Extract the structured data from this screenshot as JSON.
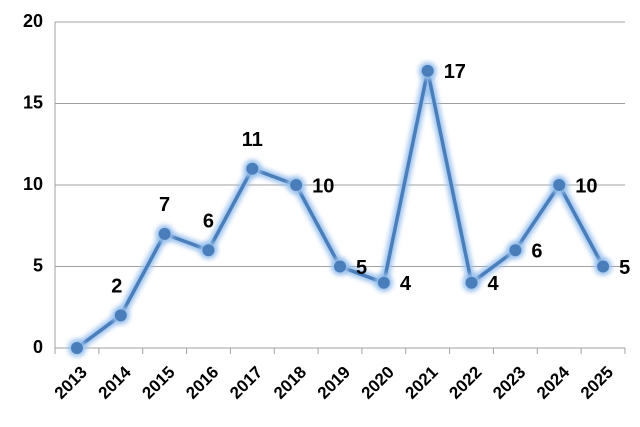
{
  "chart_data": {
    "type": "line",
    "categories": [
      "2013",
      "2014",
      "2015",
      "2016",
      "2017",
      "2018",
      "2019",
      "2020",
      "2021",
      "2022",
      "2023",
      "2024",
      "2025"
    ],
    "series": [
      {
        "color": "#4a7ebb",
        "values": [
          0,
          2,
          7,
          6,
          11,
          10,
          5,
          4,
          17,
          4,
          6,
          10,
          5
        ],
        "value_labels": [
          null,
          "2",
          "7",
          "6",
          "11",
          "10",
          "5",
          "4",
          "17",
          "4",
          "6",
          "10",
          "5"
        ]
      }
    ],
    "ylim": [
      0,
      20
    ],
    "yticks": [
      0,
      5,
      10,
      15,
      20
    ],
    "grid": true
  }
}
